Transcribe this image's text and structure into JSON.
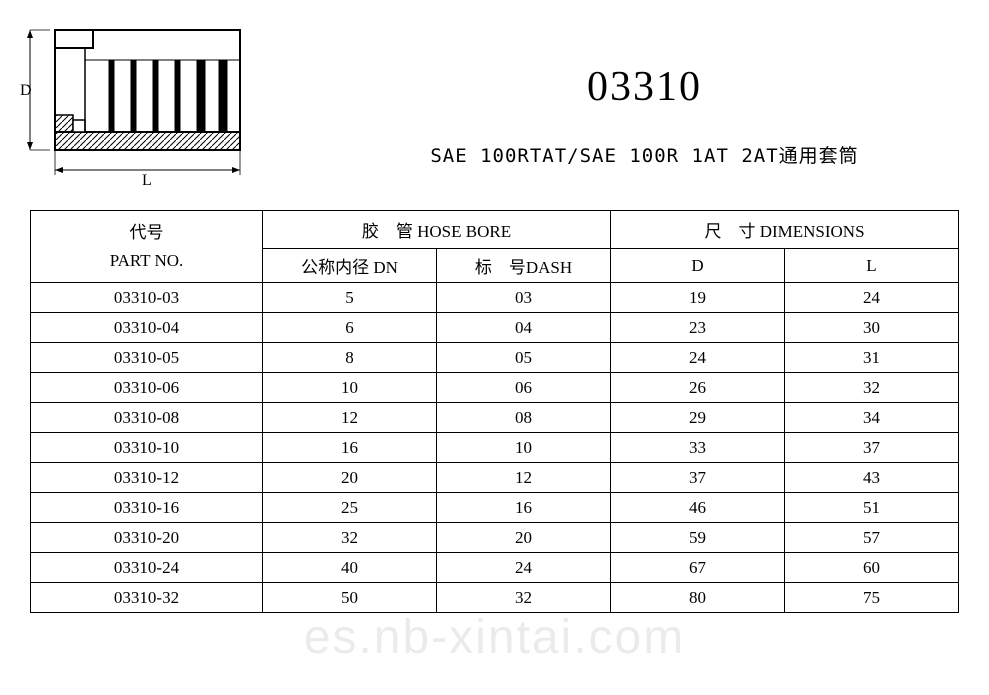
{
  "title": "03310",
  "subtitle": "SAE 100RTAT/SAE 100R 1AT 2AT通用套筒",
  "diagram": {
    "label_d": "D",
    "label_l": "L",
    "stroke": "#000000",
    "hatch_color": "#000000"
  },
  "table": {
    "headers": {
      "part_no_cn": "代号",
      "part_no_en": "PART NO.",
      "hose_bore": "胶　管 HOSE BORE",
      "dimensions": "尺　寸 DIMENSIONS",
      "dn": "公称内径 DN",
      "dash": "标　号DASH",
      "d": "D",
      "l": "L"
    },
    "rows": [
      {
        "part": "03310-03",
        "dn": "5",
        "dash": "03",
        "d": "19",
        "l": "24"
      },
      {
        "part": "03310-04",
        "dn": "6",
        "dash": "04",
        "d": "23",
        "l": "30"
      },
      {
        "part": "03310-05",
        "dn": "8",
        "dash": "05",
        "d": "24",
        "l": "31"
      },
      {
        "part": "03310-06",
        "dn": "10",
        "dash": "06",
        "d": "26",
        "l": "32"
      },
      {
        "part": "03310-08",
        "dn": "12",
        "dash": "08",
        "d": "29",
        "l": "34"
      },
      {
        "part": "03310-10",
        "dn": "16",
        "dash": "10",
        "d": "33",
        "l": "37"
      },
      {
        "part": "03310-12",
        "dn": "20",
        "dash": "12",
        "d": "37",
        "l": "43"
      },
      {
        "part": "03310-16",
        "dn": "25",
        "dash": "16",
        "d": "46",
        "l": "51"
      },
      {
        "part": "03310-20",
        "dn": "32",
        "dash": "20",
        "d": "59",
        "l": "57"
      },
      {
        "part": "03310-24",
        "dn": "40",
        "dash": "24",
        "d": "67",
        "l": "60"
      },
      {
        "part": "03310-32",
        "dn": "50",
        "dash": "32",
        "d": "80",
        "l": "75"
      }
    ]
  },
  "watermark": "es.nb-xintai.com"
}
